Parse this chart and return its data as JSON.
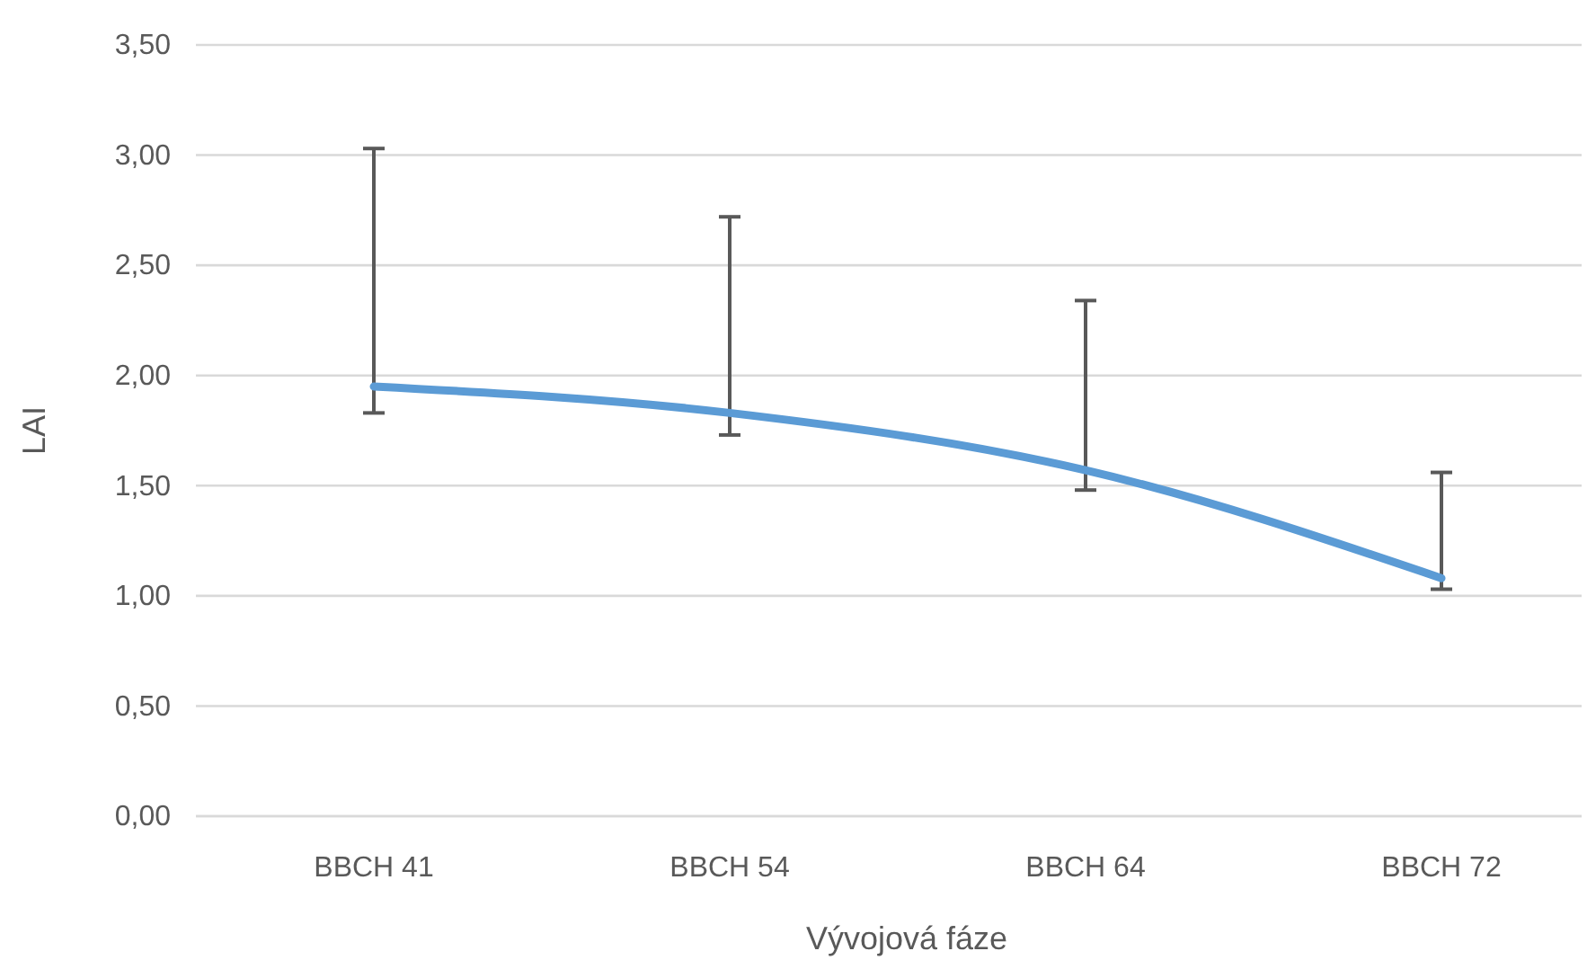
{
  "chart_data": {
    "type": "line",
    "xlabel": "Vývojová fáze",
    "ylabel": "LAI",
    "categories": [
      "BBCH 41",
      "BBCH 54",
      "BBCH 64",
      "BBCH 72"
    ],
    "series": [
      {
        "color": "#5b9bd5",
        "values": [
          1.95,
          1.83,
          1.57,
          1.08
        ],
        "errors": [
          [
            1.83,
            3.03
          ],
          [
            1.73,
            2.72
          ],
          [
            1.48,
            2.34
          ],
          [
            1.03,
            1.56
          ]
        ]
      }
    ],
    "ylim": [
      0,
      3.5
    ],
    "yticks": [
      {
        "value": 0,
        "label": "0,00"
      },
      {
        "value": 0.5,
        "label": "0,50"
      },
      {
        "value": 1,
        "label": "1,00"
      },
      {
        "value": 1.5,
        "label": "1,50"
      },
      {
        "value": 2,
        "label": "2,00"
      },
      {
        "value": 2.5,
        "label": "2,50"
      },
      {
        "value": 3,
        "label": "3,00"
      },
      {
        "value": 3.5,
        "label": "3,50"
      }
    ],
    "grid": "y",
    "marker": "none",
    "line_style": "solid"
  }
}
